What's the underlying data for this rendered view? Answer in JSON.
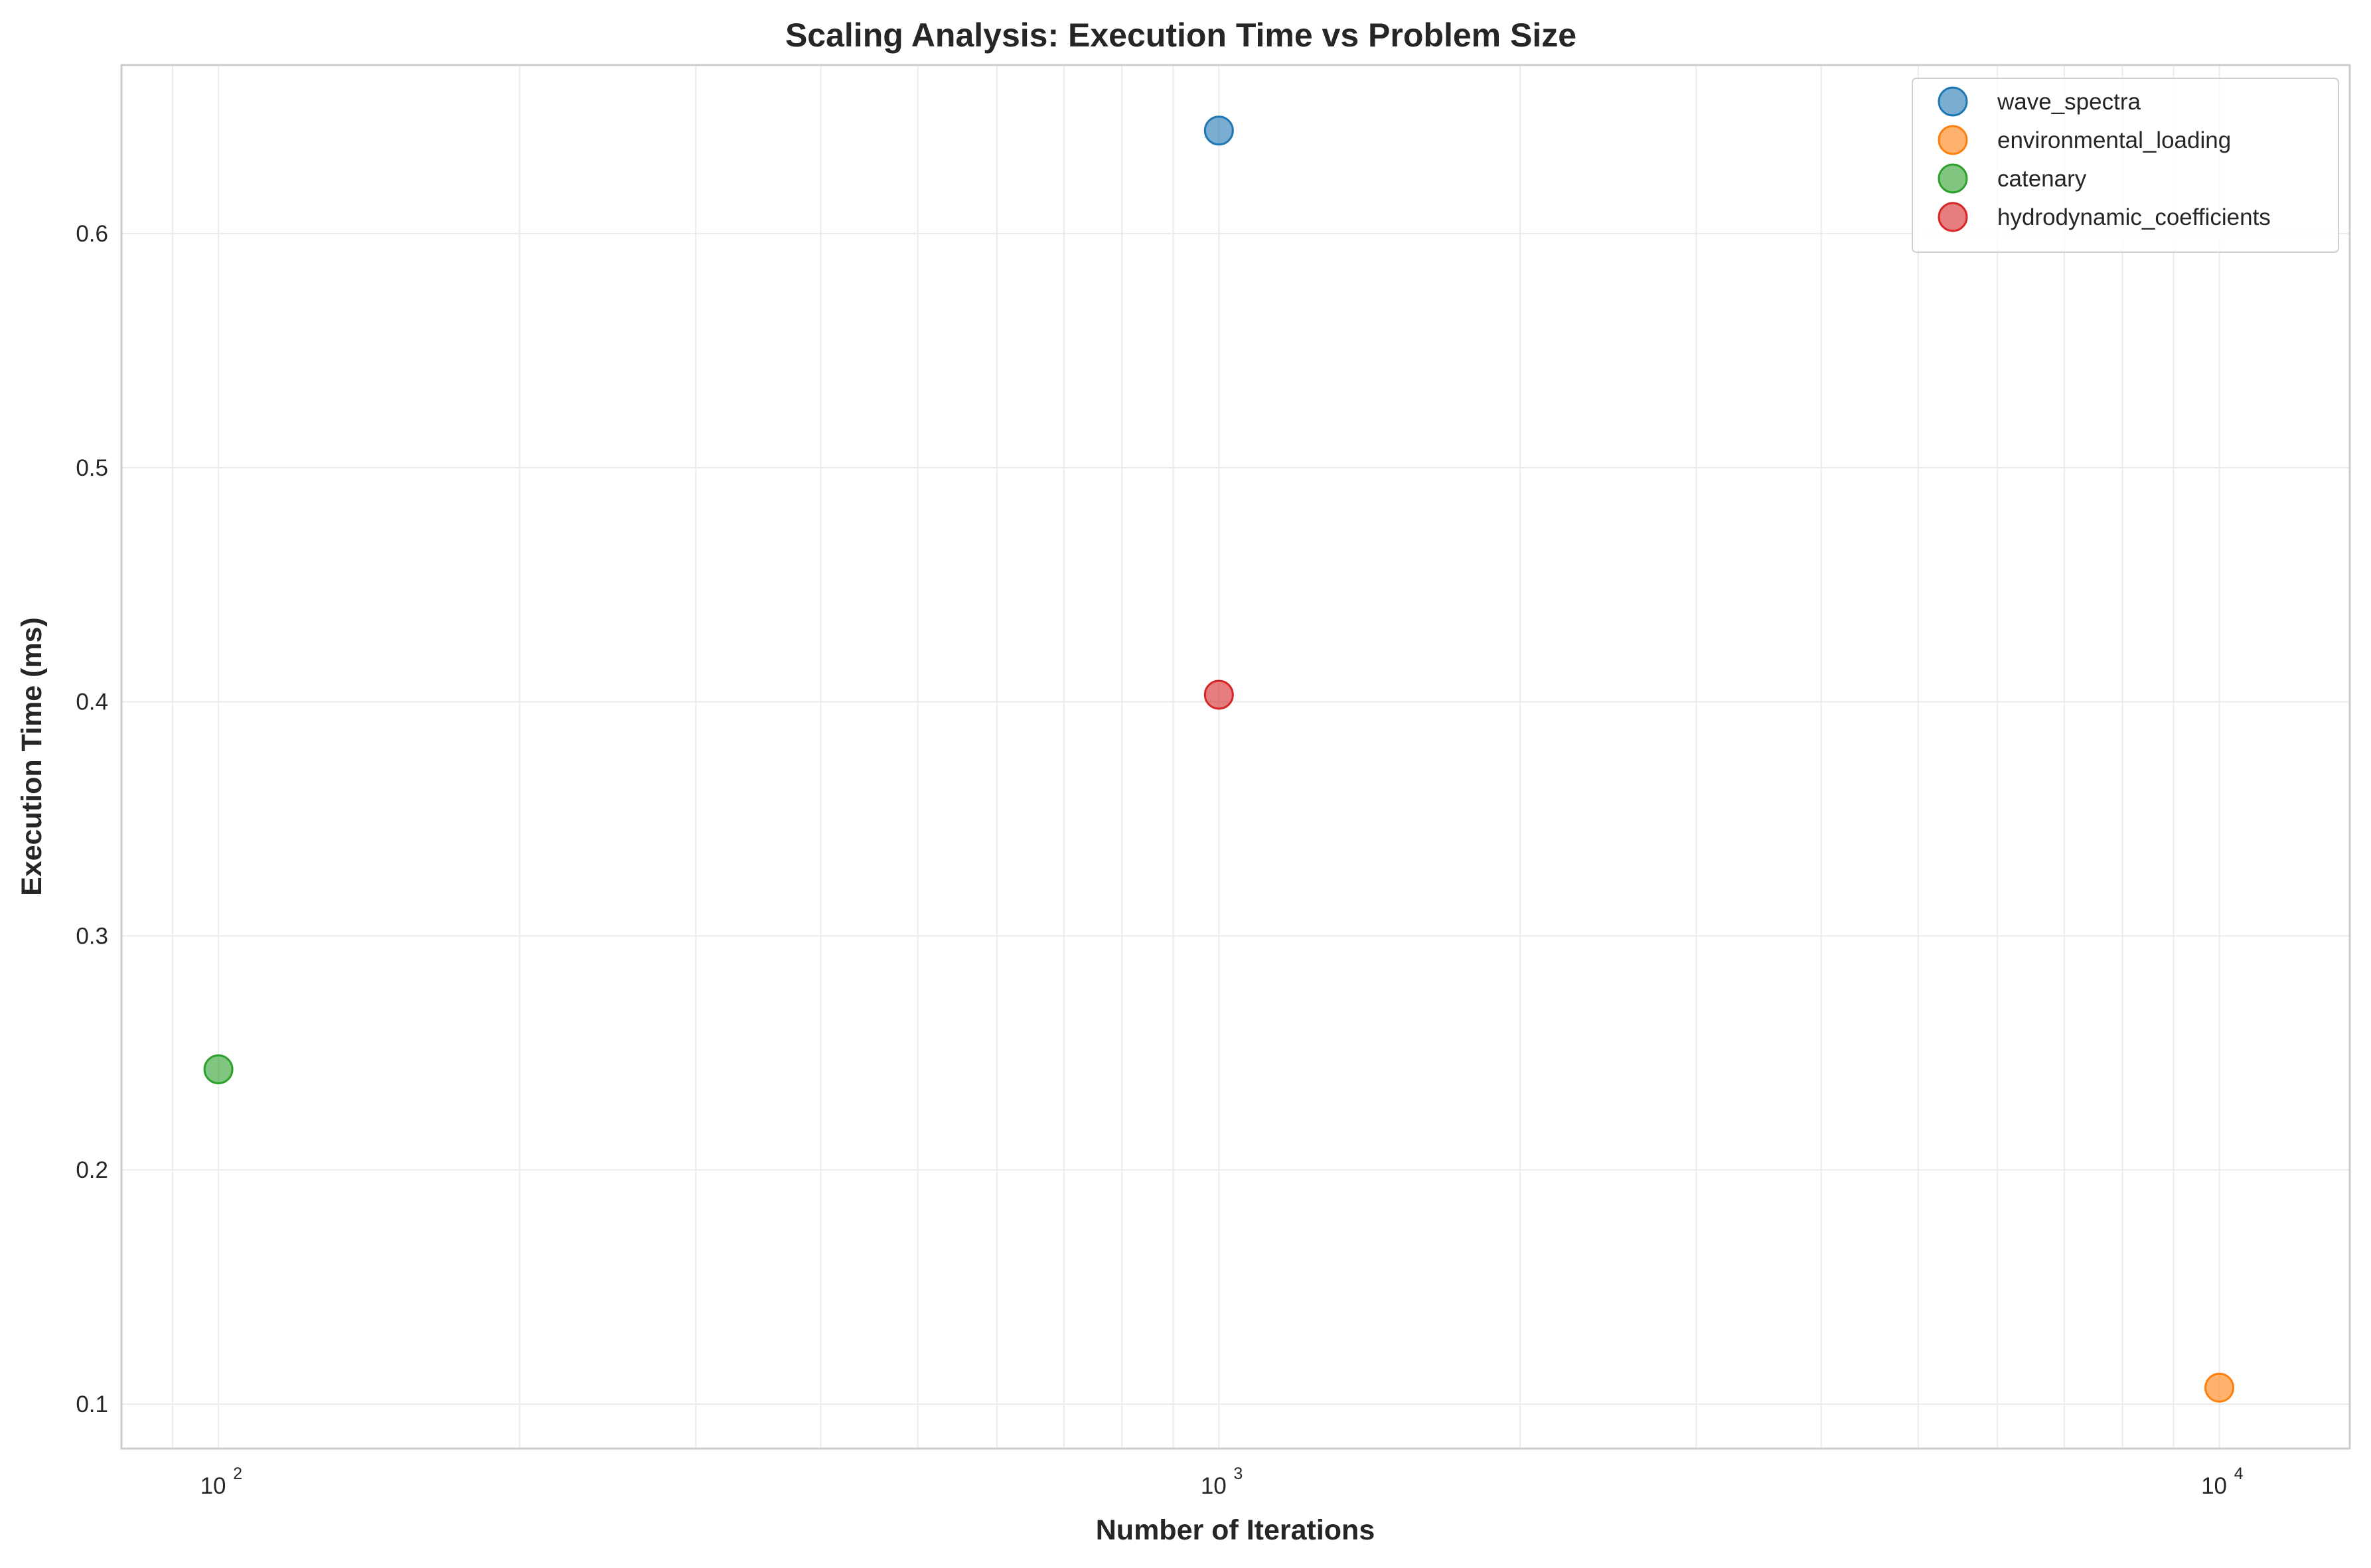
{
  "chart_data": {
    "type": "scatter",
    "title": "Scaling Analysis: Execution Time vs Problem Size",
    "xlabel": "Number of Iterations",
    "ylabel": "Execution Time (ms)",
    "xscale": "log",
    "xlim": [
      80,
      13500
    ],
    "ylim": [
      0.081,
      0.672
    ],
    "x_ticks": [
      {
        "value": 100,
        "base": "10",
        "exp": "2"
      },
      {
        "value": 1000,
        "base": "10",
        "exp": "3"
      },
      {
        "value": 10000,
        "base": "10",
        "exp": "4"
      }
    ],
    "y_ticks": [
      {
        "value": 0.1,
        "label": "0.1"
      },
      {
        "value": 0.2,
        "label": "0.2"
      },
      {
        "value": 0.3,
        "label": "0.3"
      },
      {
        "value": 0.4,
        "label": "0.4"
      },
      {
        "value": 0.5,
        "label": "0.5"
      },
      {
        "value": 0.6,
        "label": "0.6"
      }
    ],
    "grid": true,
    "legend_position": "top-right",
    "series": [
      {
        "name": "wave_spectra",
        "color": "#1f77b4",
        "points": [
          {
            "x": 1000,
            "y": 0.644
          }
        ]
      },
      {
        "name": "environmental_loading",
        "color": "#ff7f0e",
        "points": [
          {
            "x": 10000,
            "y": 0.107
          }
        ]
      },
      {
        "name": "catenary",
        "color": "#2ca02c",
        "points": [
          {
            "x": 100,
            "y": 0.243
          }
        ]
      },
      {
        "name": "hydrodynamic_coefficients",
        "color": "#d62728",
        "points": [
          {
            "x": 1000,
            "y": 0.403
          }
        ]
      }
    ]
  }
}
